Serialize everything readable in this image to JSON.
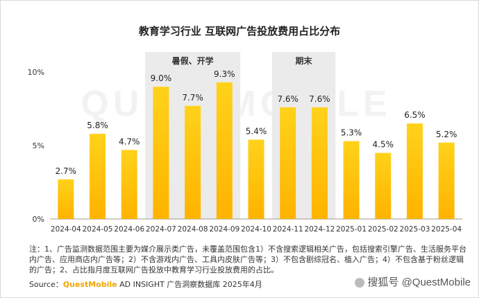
{
  "chart_data": {
    "type": "bar",
    "title": "教育学习行业 互联网广告投放费用占比分布",
    "categories": [
      "2024-04",
      "2024-05",
      "2024-06",
      "2024-07",
      "2024-08",
      "2024-09",
      "2024-10",
      "2024-11",
      "2024-12",
      "2025-01",
      "2025-02",
      "2025-03",
      "2025-04"
    ],
    "values": [
      2.7,
      5.8,
      4.7,
      9.0,
      7.7,
      9.3,
      5.4,
      7.6,
      7.6,
      5.3,
      4.5,
      6.5,
      5.2
    ],
    "value_labels": [
      "2.7%",
      "5.8%",
      "4.7%",
      "9.0%",
      "7.7%",
      "9.3%",
      "5.4%",
      "7.6%",
      "7.6%",
      "5.3%",
      "4.5%",
      "6.5%",
      "5.2%"
    ],
    "y_ticks": [
      "0%",
      "5%",
      "10%"
    ],
    "ylim": [
      0,
      10
    ],
    "xlabel": "",
    "ylabel": "",
    "bar_color_top": "#ffd21a",
    "bar_color_bottom": "#ffb300",
    "band_color": "#ebebeb",
    "highlight_bands": [
      {
        "label": "暑假、开学",
        "from": "2024-07",
        "to": "2024-09"
      },
      {
        "label": "期末",
        "from": "2024-11",
        "to": "2024-12"
      }
    ],
    "grid": false
  },
  "note": "注：1、广告监测数据范围主要为媒介展示类广告，未覆盖范围包含1）不含搜索逻辑相关广告，包括搜索引擎广告、生活服务平台内广告、应用商店内广告等；2）不含游戏内广告、工具内皮肤广告等；3）不包含剧综冠名、植入广告；4）不包含基于粉丝逻辑的广告；2、占比指月度互联网广告投放中教育学习行业投放费用的占比。",
  "source_prefix": "Source：",
  "source_brand": "QuestMobile",
  "source_rest": " AD INSIGHT 广告洞察数据库 2025年4月",
  "background_watermark": "QUESTMOBILE",
  "watermark": "@QuestMobile",
  "watermark_logo": "搜狐号"
}
